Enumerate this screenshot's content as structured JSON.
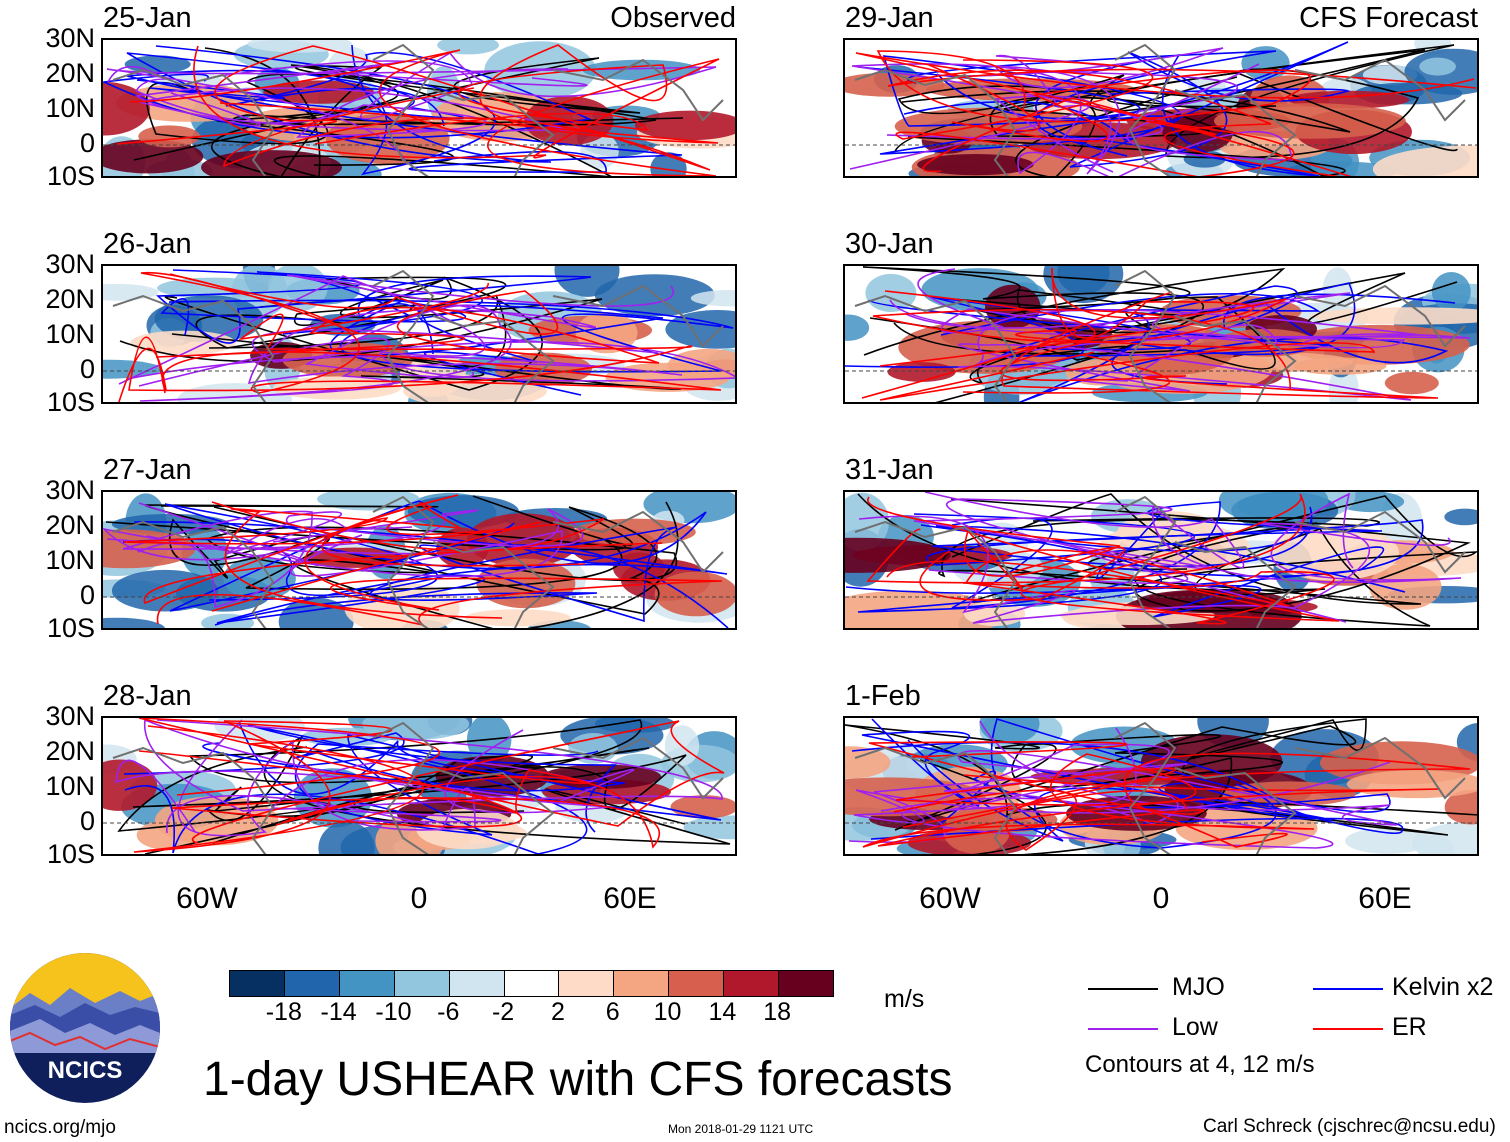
{
  "title": "1-day USHEAR with CFS forecasts",
  "observed_label": "Observed",
  "forecast_label": "CFS Forecast",
  "panels": [
    {
      "date": "25-Jan",
      "type": "observed"
    },
    {
      "date": "26-Jan",
      "type": "observed"
    },
    {
      "date": "27-Jan",
      "type": "observed"
    },
    {
      "date": "28-Jan",
      "type": "observed"
    },
    {
      "date": "29-Jan",
      "type": "forecast"
    },
    {
      "date": "30-Jan",
      "type": "forecast"
    },
    {
      "date": "31-Jan",
      "type": "forecast"
    },
    {
      "date": "1-Feb",
      "type": "forecast"
    }
  ],
  "lat_labels": [
    "30N",
    "20N",
    "10N",
    "0",
    "10S"
  ],
  "lon_labels": [
    "60W",
    "0",
    "60E"
  ],
  "colorbar": {
    "ticks": [
      "-18",
      "-14",
      "-10",
      "-6",
      "-2",
      "2",
      "6",
      "10",
      "14",
      "18"
    ],
    "colors": [
      "#053061",
      "#2166ac",
      "#4393c3",
      "#92c5de",
      "#d1e5f0",
      "#ffffff",
      "#fddbc7",
      "#f4a582",
      "#d6604d",
      "#b2182b",
      "#67001f"
    ],
    "units": "m/s"
  },
  "legend": [
    {
      "label": "MJO",
      "color": "#000000"
    },
    {
      "label": "Kelvin x2",
      "color": "#0000ff"
    },
    {
      "label": "Low",
      "color": "#a020f0"
    },
    {
      "label": "ER",
      "color": "#ff0000"
    }
  ],
  "contours_note": "Contours at 4, 12 m/s",
  "logo_text": "NCICS",
  "footer": {
    "left": "ncics.org/mjo",
    "center": "Mon 2018-01-29 1121 UTC",
    "right": "Carl Schreck (cjschrec@ncsu.edu)"
  }
}
